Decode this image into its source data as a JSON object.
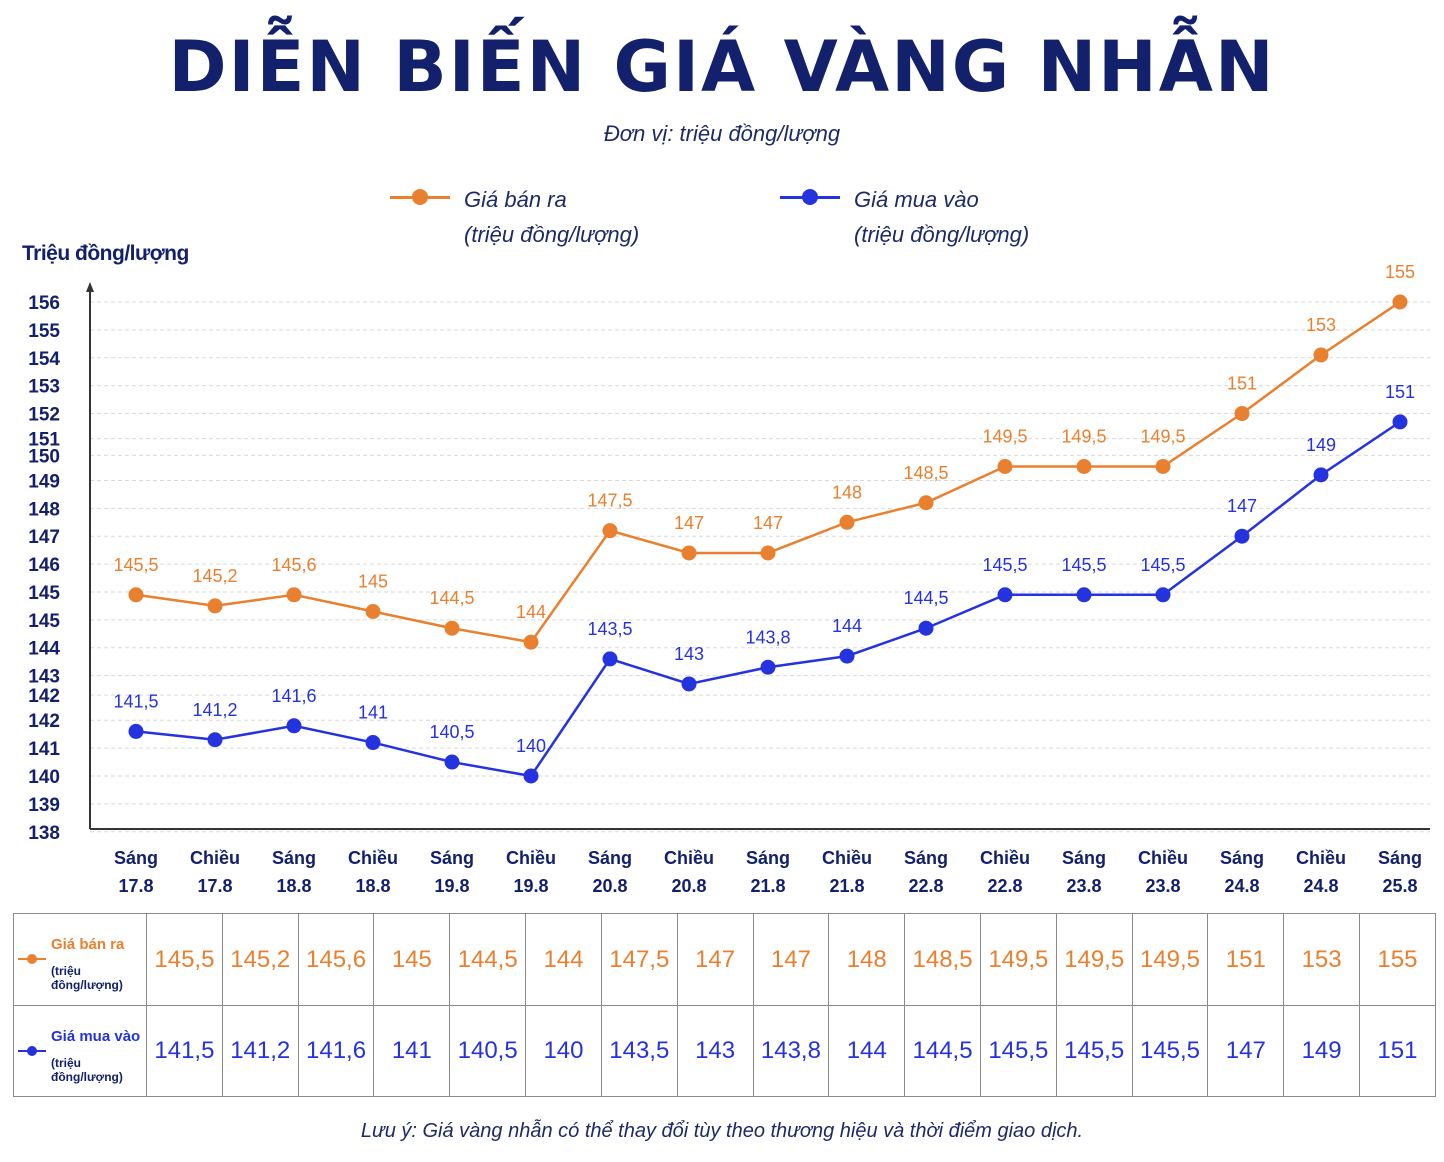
{
  "title": "DIỄN BIẾN GIÁ VÀNG NHẪN",
  "subtitle": "Đơn vị: triệu đồng/lượng",
  "note": "Lưu ý: Giá vàng nhẫn có thể thay đổi tùy theo thương hiệu và thời điểm giao dịch.",
  "colors": {
    "sell": "#e8802f",
    "buy": "#2433dd",
    "grid": "#d9d9d9",
    "axis": "#333333",
    "title": "#13206b"
  },
  "legend": [
    {
      "name": "Giá bán ra",
      "unit": "(triệu đồng/lượng)"
    },
    {
      "name": "Giá mua vào",
      "unit": "(triệu đồng/lượng)"
    }
  ],
  "table": {
    "sell_label": "Giá bán ra",
    "sell_unit": "(triệu đồng/lượng)",
    "buy_label": "Giá mua vào",
    "buy_unit": "(triệu đồng/lượng)"
  },
  "chart_data": {
    "type": "line",
    "title": "DIỄN BIẾN GIÁ VÀNG NHẪN",
    "ylabel": "Triệu đồng/lượng",
    "xlabel": "",
    "categories": [
      [
        "Sáng",
        "17.8"
      ],
      [
        "Chiều",
        "17.8"
      ],
      [
        "Sáng",
        "18.8"
      ],
      [
        "Chiều",
        "18.8"
      ],
      [
        "Sáng",
        "19.8"
      ],
      [
        "Chiều",
        "19.8"
      ],
      [
        "Sáng",
        "20.8"
      ],
      [
        "Chiều",
        "20.8"
      ],
      [
        "Sáng",
        "21.8"
      ],
      [
        "Chiều",
        "21.8"
      ],
      [
        "Sáng",
        "22.8"
      ],
      [
        "Chiều",
        "22.8"
      ],
      [
        "Sáng",
        "23.8"
      ],
      [
        "Chiều",
        "23.8"
      ],
      [
        "Sáng",
        "24.8"
      ],
      [
        "Chiều",
        "24.8"
      ],
      [
        "Sáng",
        "25.8"
      ]
    ],
    "yticks": [
      {
        "label": "156",
        "value": 156
      },
      {
        "label": "155",
        "value": 155
      },
      {
        "label": "154",
        "value": 154
      },
      {
        "label": "153",
        "value": 153
      },
      {
        "label": "152",
        "value": 152
      },
      {
        "label": "151",
        "value": 151.1
      },
      {
        "label": "150",
        "value": 150.5
      },
      {
        "label": "149",
        "value": 149.6
      },
      {
        "label": "148",
        "value": 148.6
      },
      {
        "label": "147",
        "value": 147.6
      },
      {
        "label": "146",
        "value": 146.6
      },
      {
        "label": "145",
        "value": 145.6
      },
      {
        "label": "145",
        "value": 144.6
      },
      {
        "label": "144",
        "value": 143.6
      },
      {
        "label": "143",
        "value": 142.6
      },
      {
        "label": "142",
        "value": 141.9
      },
      {
        "label": "142",
        "value": 141.0
      },
      {
        "label": "141",
        "value": 140.0
      },
      {
        "label": "140",
        "value": 139.0
      },
      {
        "label": "139",
        "value": 138.0
      },
      {
        "label": "138",
        "value": 137.0
      }
    ],
    "ylim": [
      137,
      157
    ],
    "grid": true,
    "legend_position": "top",
    "series": [
      {
        "name": "Giá bán ra",
        "color": "#e8802f",
        "values": [
          145.5,
          145.2,
          145.6,
          145,
          144.5,
          144,
          147.5,
          147,
          147,
          148,
          148.5,
          149.5,
          149.5,
          149.5,
          151,
          153,
          155
        ],
        "labels": [
          "145,5",
          "145,2",
          "145,6",
          "145",
          "144,5",
          "144",
          "147,5",
          "147",
          "147",
          "148",
          "148,5",
          "149,5",
          "149,5",
          "149,5",
          "151",
          "153",
          "155"
        ],
        "plot_values": [
          145.5,
          145.1,
          145.5,
          144.9,
          144.3,
          143.8,
          147.8,
          147.0,
          147.0,
          148.1,
          148.8,
          150.1,
          150.1,
          150.1,
          152.0,
          154.1,
          156.0
        ]
      },
      {
        "name": "Giá mua vào",
        "color": "#2433dd",
        "values": [
          141.5,
          141.2,
          141.6,
          141,
          140.5,
          140,
          143.5,
          143,
          143.8,
          144,
          144.5,
          145.5,
          145.5,
          145.5,
          147,
          149,
          151
        ],
        "labels": [
          "141,5",
          "141,2",
          "141,6",
          "141",
          "140,5",
          "140",
          "143,5",
          "143",
          "143,8",
          "144",
          "144,5",
          "145,5",
          "145,5",
          "145,5",
          "147",
          "149",
          "151"
        ],
        "plot_values": [
          140.6,
          140.3,
          140.8,
          140.2,
          139.5,
          139.0,
          143.2,
          142.3,
          142.9,
          143.3,
          144.3,
          145.5,
          145.5,
          145.5,
          147.6,
          149.8,
          151.7
        ]
      }
    ]
  }
}
